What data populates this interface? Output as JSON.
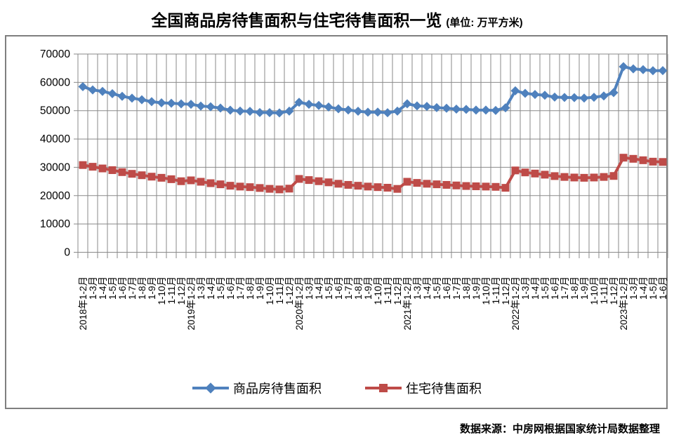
{
  "title": {
    "main": "全国商品房待售面积与住宅待售面积一览",
    "unit": "(单位: 万平方米)"
  },
  "source": "数据来源：中房网根据国家统计局数据整理",
  "colors": {
    "series_commercial": "#4F81BD",
    "series_residential": "#BE4B48",
    "gridline": "#898989",
    "frame_border": "#7f7f7f",
    "text": "#000000"
  },
  "legend": [
    {
      "label": "商品房待售面积",
      "marker": "diamond",
      "color": "#4F81BD"
    },
    {
      "label": "住宅待售面积",
      "marker": "square",
      "color": "#BE4B48"
    }
  ],
  "chart_data": {
    "type": "line",
    "title": "全国商品房待售面积与住宅待售面积一览",
    "unit_label": "万平方米",
    "xlabel": "",
    "ylabel": "",
    "ylim": [
      0,
      70000
    ],
    "ytick_interval": 10000,
    "ytick_labels": [
      "0",
      "10000",
      "20000",
      "30000",
      "40000",
      "50000",
      "60000",
      "70000"
    ],
    "grid": true,
    "legend_position": "bottom",
    "categories": [
      "2018年1-2月",
      "1-3月",
      "1-4月",
      "1-5月",
      "1-6月",
      "1-7月",
      "1-8月",
      "1-9月",
      "1-10月",
      "1-11月",
      "1-12月",
      "2019年1-2月",
      "1-3月",
      "1-4月",
      "1-5月",
      "1-6月",
      "1-7月",
      "1-8月",
      "1-9月",
      "1-10月",
      "1-11月",
      "1-12月",
      "2020年1-2月",
      "1-3月",
      "1-4月",
      "1-5月",
      "1-6月",
      "1-7月",
      "1-8月",
      "1-9月",
      "1-10月",
      "1-11月",
      "1-12月",
      "2021年1-2月",
      "1-3月",
      "1-4月",
      "1-5月",
      "1-6月",
      "1-7月",
      "1-8月",
      "1-9月",
      "1-10月",
      "1-11月",
      "1-12月",
      "2022年1-2月",
      "1-3月",
      "1-4月",
      "1-5月",
      "1-6月",
      "1-7月",
      "1-8月",
      "1-9月",
      "1-10月",
      "1-11月",
      "1-12月",
      "2023年1-2月",
      "1-3月",
      "1-4月",
      "1-5月",
      "1-6月"
    ],
    "series": [
      {
        "name": "商品房待售面积",
        "color": "#4F81BD",
        "marker": "diamond",
        "values": [
          58468,
          57329,
          56818,
          56010,
          55083,
          54428,
          53873,
          53191,
          52789,
          52627,
          52414,
          52251,
          51646,
          51380,
          50928,
          50162,
          49876,
          49784,
          49346,
          49323,
          49221,
          49821,
          52966,
          52255,
          51845,
          51280,
          50662,
          50237,
          49813,
          49479,
          49492,
          49287,
          49850,
          52425,
          51705,
          51511,
          51085,
          50858,
          50553,
          50453,
          50210,
          50215,
          50092,
          51023,
          57026,
          56113,
          55735,
          55433,
          54784,
          54655,
          54605,
          54456,
          54734,
          55203,
          56366,
          65528,
          64770,
          64487,
          64120,
          64159
        ]
      },
      {
        "name": "住宅待售面积",
        "color": "#BE4B48",
        "marker": "square",
        "values": [
          30800,
          30200,
          29600,
          29000,
          28300,
          27700,
          27200,
          26700,
          26300,
          25800,
          25091,
          25400,
          24900,
          24400,
          24000,
          23500,
          23200,
          23000,
          22700,
          22400,
          22200,
          22473,
          25900,
          25500,
          25100,
          24700,
          24200,
          23800,
          23500,
          23200,
          23000,
          22800,
          22379,
          24900,
          24500,
          24200,
          24000,
          23800,
          23600,
          23400,
          23300,
          23200,
          23100,
          22761,
          28900,
          28200,
          27800,
          27400,
          26900,
          26600,
          26400,
          26300,
          26400,
          26600,
          26947,
          33400,
          33000,
          32500,
          32000,
          31893
        ]
      }
    ]
  }
}
